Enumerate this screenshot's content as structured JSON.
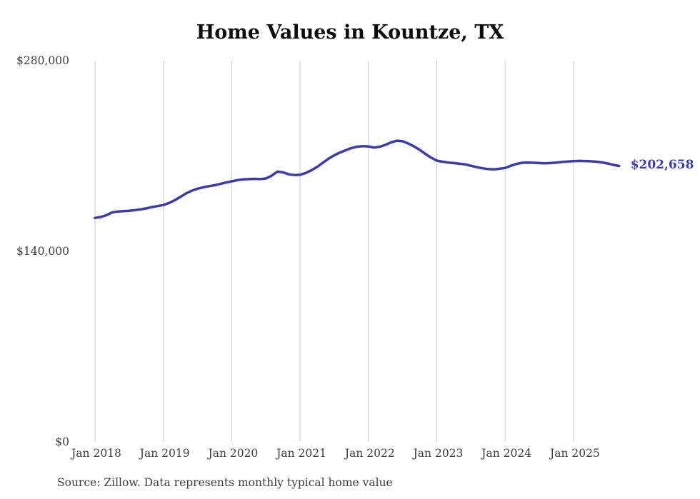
{
  "source_note": "Source: Zillow. Data represents monthly typical home value",
  "colors": {
    "line": "#3b3bb0",
    "grid": "#cccccc",
    "tick_text": "#3d3d3d",
    "title_text": "#0d0d0d"
  },
  "chart_data": {
    "type": "line",
    "title": "Home Values in Kountze, TX",
    "xlabel": "",
    "ylabel": "",
    "x_start": "2018-01",
    "x_end": "2025-09",
    "x_frequency": "monthly",
    "x_tick_labels": [
      "Jan 2018",
      "Jan 2019",
      "Jan 2020",
      "Jan 2021",
      "Jan 2022",
      "Jan 2023",
      "Jan 2024",
      "Jan 2025"
    ],
    "y_ticks": [
      0,
      140000,
      280000
    ],
    "y_tick_labels": [
      "$0",
      "$140,000",
      "$280,000"
    ],
    "ylim": [
      0,
      280000
    ],
    "grid": "vertical-only",
    "legend": "none",
    "end_value": 202658,
    "end_label": "$202,658",
    "series": [
      {
        "name": "Typical home value",
        "values": [
          164500,
          165200,
          166500,
          168500,
          169200,
          169500,
          169800,
          170200,
          170800,
          171500,
          172500,
          173200,
          174000,
          175500,
          177500,
          180000,
          182500,
          184500,
          186000,
          187000,
          187800,
          188500,
          189500,
          190500,
          191400,
          192200,
          192800,
          193000,
          193200,
          193000,
          193500,
          195500,
          198500,
          198000,
          196500,
          196000,
          196200,
          197500,
          199500,
          202000,
          205000,
          208000,
          210500,
          212500,
          214200,
          215800,
          216800,
          217200,
          217000,
          216200,
          216800,
          218200,
          220000,
          221200,
          220800,
          219200,
          217000,
          214500,
          211500,
          208800,
          206600,
          205800,
          205200,
          204800,
          204300,
          203800,
          202800,
          201800,
          201000,
          200400,
          200200,
          200600,
          201200,
          202800,
          204200,
          205000,
          205200,
          205000,
          204800,
          204600,
          204800,
          205200,
          205600,
          205900,
          206200,
          206400,
          206300,
          206100,
          205800,
          205300,
          204500,
          203500,
          202658
        ]
      }
    ]
  }
}
